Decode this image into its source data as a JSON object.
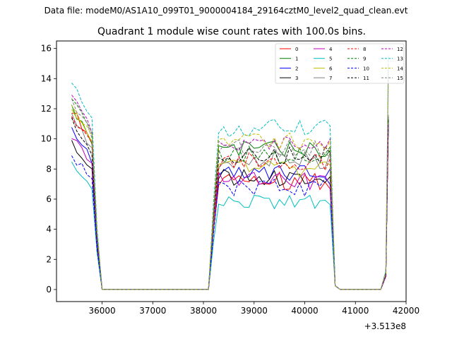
{
  "figure": {
    "suptitle": "Data file: modeM0/AS1A10_099T01_9000004184_29164cztM0_level2_quad_clean.evt"
  },
  "chart_data": {
    "type": "line",
    "title": "Quadrant 1 module wise count rates with 100.0s bins.",
    "xlabel": "",
    "ylabel": "",
    "x_offset_label": "+3.513e8",
    "xlim": [
      35100,
      42000
    ],
    "ylim": [
      -0.8,
      16.5
    ],
    "xticks": [
      36000,
      37000,
      38000,
      39000,
      40000,
      41000,
      42000
    ],
    "xtick_labels": [
      "36000",
      "37000",
      "38000",
      "39000",
      "40000",
      "41000",
      "42000"
    ],
    "yticks": [
      0,
      2,
      4,
      6,
      8,
      10,
      12,
      14,
      16
    ],
    "ytick_labels": [
      "0",
      "2",
      "4",
      "6",
      "8",
      "10",
      "12",
      "14",
      "16"
    ],
    "legend_position": "top-right",
    "series": [
      {
        "name": "0",
        "color": "#ff0000",
        "style": "solid",
        "start_level": 12.0,
        "peak_level": 7.2,
        "end_level": 11.5
      },
      {
        "name": "1",
        "color": "#008000",
        "style": "solid",
        "start_level": 12.0,
        "peak_level": 9.4,
        "end_level": 11.4
      },
      {
        "name": "2",
        "color": "#0000ff",
        "style": "solid",
        "start_level": 10.5,
        "peak_level": 7.7,
        "end_level": 11.0
      },
      {
        "name": "3",
        "color": "#000000",
        "style": "solid",
        "start_level": 9.7,
        "peak_level": 7.4,
        "end_level": 11.2
      },
      {
        "name": "4",
        "color": "#bf00bf",
        "style": "solid",
        "start_level": 10.2,
        "peak_level": 7.2,
        "end_level": 11.0
      },
      {
        "name": "5",
        "color": "#00bfbf",
        "style": "solid",
        "start_level": 8.2,
        "peak_level": 5.8,
        "end_level": 11.5
      },
      {
        "name": "6",
        "color": "#bfbf00",
        "style": "solid",
        "start_level": 12.2,
        "peak_level": 8.0,
        "end_level": 11.3
      },
      {
        "name": "7",
        "color": "#808080",
        "style": "solid",
        "start_level": 11.5,
        "peak_level": 8.6,
        "end_level": 11.6
      },
      {
        "name": "8",
        "color": "#ff0000",
        "style": "dashed",
        "start_level": 11.6,
        "peak_level": 8.5,
        "end_level": 11.0
      },
      {
        "name": "9",
        "color": "#008000",
        "style": "dashed",
        "start_level": 12.7,
        "peak_level": 9.0,
        "end_level": 11.2
      },
      {
        "name": "10",
        "color": "#0000ff",
        "style": "dashed",
        "start_level": 8.9,
        "peak_level": 6.8,
        "end_level": 11.0
      },
      {
        "name": "11",
        "color": "#000000",
        "style": "dashed",
        "start_level": 11.2,
        "peak_level": 8.9,
        "end_level": 11.4
      },
      {
        "name": "12",
        "color": "#bf00bf",
        "style": "dashed",
        "start_level": 12.8,
        "peak_level": 9.7,
        "end_level": 11.0
      },
      {
        "name": "13",
        "color": "#00bfbf",
        "style": "dashed",
        "start_level": 13.7,
        "peak_level": 10.7,
        "end_level": 15.5
      },
      {
        "name": "14",
        "color": "#bfbf00",
        "style": "dashed",
        "start_level": 12.4,
        "peak_level": 9.8,
        "end_level": 14.0
      },
      {
        "name": "15",
        "color": "#808080",
        "style": "dashed",
        "start_level": 12.5,
        "peak_level": 9.4,
        "end_level": 15.0
      }
    ],
    "time_profile": {
      "first_segment": {
        "start": 35400,
        "end": 35800,
        "drop_end": 36000
      },
      "second_segment": {
        "rise_start": 38100,
        "plateau_start": 38300,
        "plateau_end": 40500,
        "drop_end": 40700
      },
      "final_segment": {
        "rise_start": 41500,
        "end": 41650
      },
      "bin": 100
    }
  }
}
